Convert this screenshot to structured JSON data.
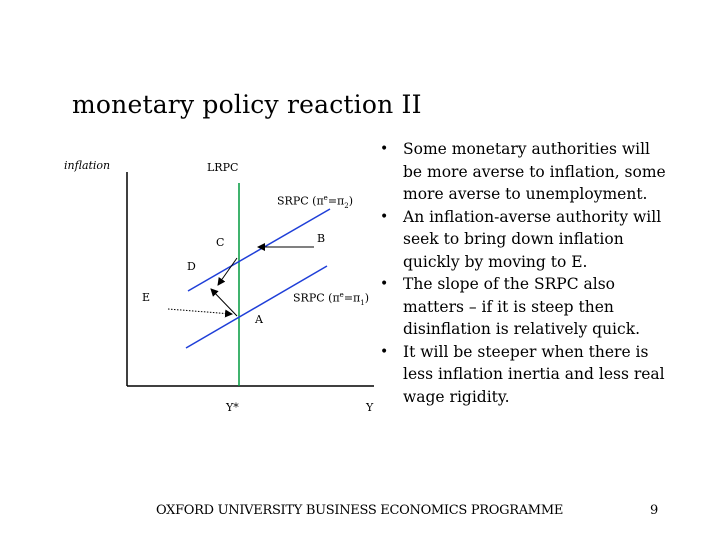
{
  "slide": {
    "title": "monetary policy reaction II",
    "footer": "OXFORD UNIVERSITY BUSINESS ECONOMICS PROGRAMME",
    "page_number": "9"
  },
  "diagram": {
    "y_axis_label": "inflation",
    "lrpc_label": "LRPC",
    "srpc2_label": {
      "prefix": "SRPC (",
      "pi1": "π",
      "sup": "e",
      "mid": "=",
      "pi2": "π",
      "sub": "2",
      "suffix": ")"
    },
    "srpc1_label": {
      "prefix": "SRPC (",
      "pi1": "π",
      "sup": "e",
      "mid": "=",
      "pi2": "π",
      "sub": "1",
      "suffix": ")"
    },
    "points": {
      "a": "A",
      "b": "B",
      "c": "C",
      "d": "D",
      "e": "E"
    },
    "x_label_ystar": "Y*",
    "x_label_y": "Y",
    "colors": {
      "lrpc": "#009a3e",
      "srpc": "#1f3fd8",
      "axis": "#000000"
    }
  },
  "bullets": [
    "Some monetary authorities will be more averse to inflation, some more averse to unemployment.",
    "An inflation-averse authority will seek to bring down inflation quickly by moving to E.",
    "The slope of the SRPC also matters – if it is steep then disinflation is relatively quick.",
    "It will be steeper when there is less inflation inertia and less real wage rigidity."
  ]
}
